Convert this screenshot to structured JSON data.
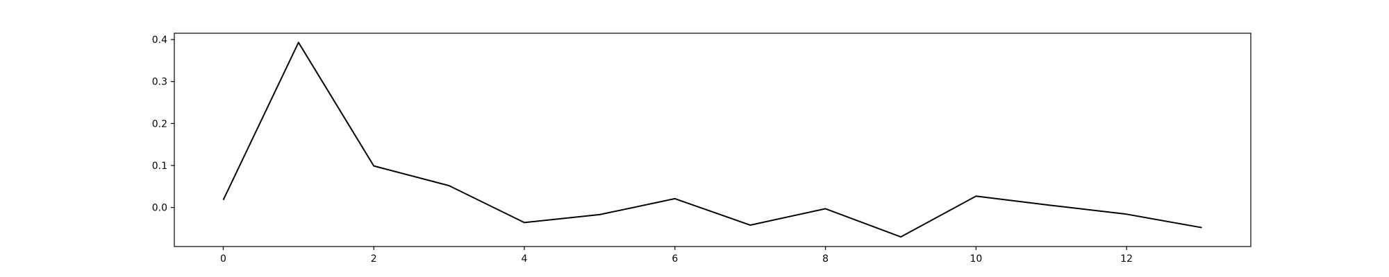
{
  "chart_data": {
    "type": "line",
    "title": "",
    "xlabel": "",
    "ylabel": "",
    "grid": false,
    "legend": false,
    "xlim": [
      -0.65,
      13.65
    ],
    "ylim": [
      -0.093,
      0.415
    ],
    "xticks": [
      0,
      2,
      4,
      6,
      8,
      10,
      12
    ],
    "xtick_labels": [
      "0",
      "2",
      "4",
      "6",
      "8",
      "10",
      "12"
    ],
    "yticks": [
      0.0,
      0.1,
      0.2,
      0.3,
      0.4
    ],
    "ytick_labels": [
      "0.0",
      "0.1",
      "0.2",
      "0.3",
      "0.4"
    ],
    "series": [
      {
        "color": "#000000",
        "x": [
          0,
          1,
          2,
          3,
          4,
          5,
          6,
          7,
          8,
          9,
          10,
          11,
          12,
          13
        ],
        "values": [
          0.018,
          0.393,
          0.099,
          0.052,
          -0.036,
          -0.017,
          0.021,
          -0.042,
          -0.003,
          -0.07,
          0.027,
          0.005,
          -0.016,
          -0.048
        ]
      }
    ]
  }
}
